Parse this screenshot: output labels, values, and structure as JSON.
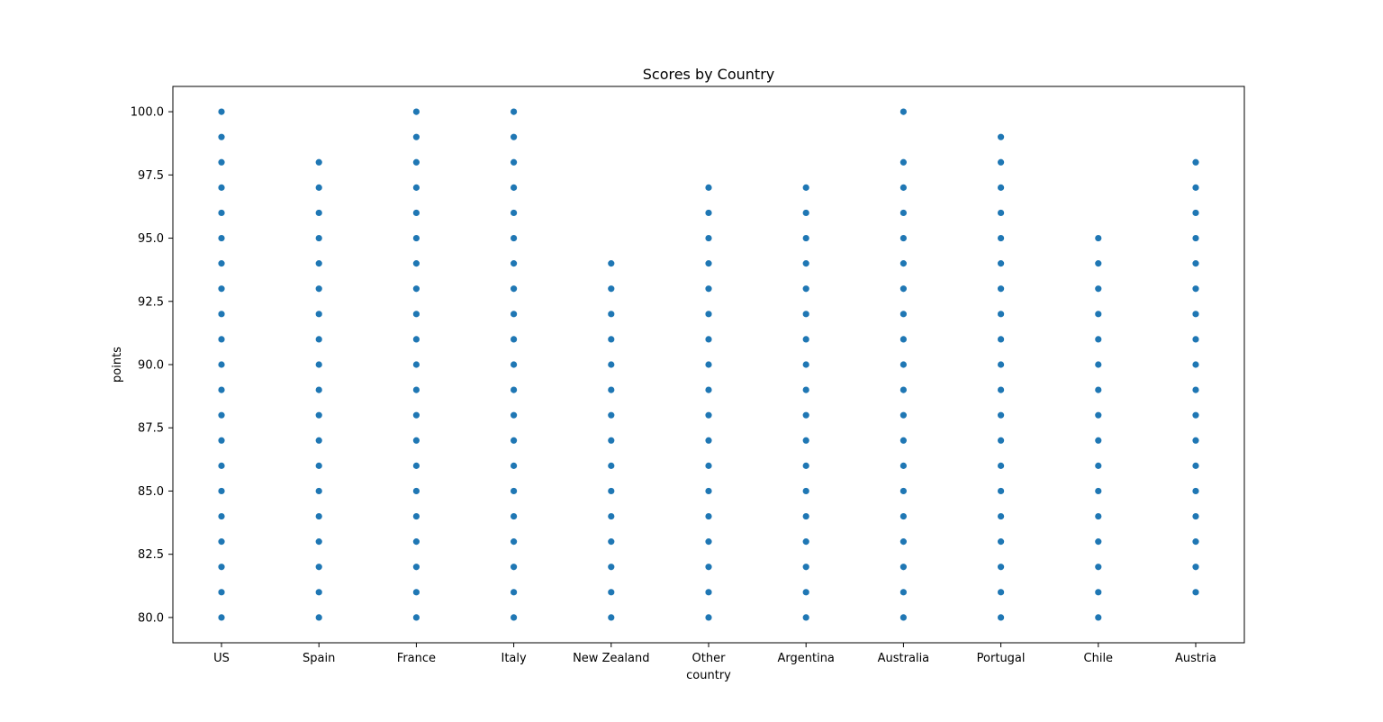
{
  "chart_data": {
    "type": "scatter",
    "title": "Scores by Country",
    "xlabel": "country",
    "ylabel": "points",
    "categories": [
      "US",
      "Spain",
      "France",
      "Italy",
      "New Zealand",
      "Other",
      "Argentina",
      "Australia",
      "Portugal",
      "Chile",
      "Austria"
    ],
    "ylim": [
      79,
      101
    ],
    "yticks": [
      "80.0",
      "82.5",
      "85.0",
      "87.5",
      "90.0",
      "92.5",
      "95.0",
      "97.5",
      "100.0"
    ],
    "grid": false,
    "color": "#1f77b4",
    "ranges": {
      "US": [
        80,
        100
      ],
      "Spain": [
        80,
        98
      ],
      "France": [
        80,
        100
      ],
      "Italy": [
        80,
        100
      ],
      "New Zealand": [
        80,
        94
      ],
      "Other": [
        80,
        97
      ],
      "Argentina": [
        80,
        97
      ],
      "Australia": [
        80,
        100
      ],
      "Portugal": [
        80,
        99
      ],
      "Chile": [
        80,
        95
      ],
      "Austria": [
        81,
        98
      ]
    },
    "missing": {
      "Australia": [
        99
      ]
    }
  }
}
